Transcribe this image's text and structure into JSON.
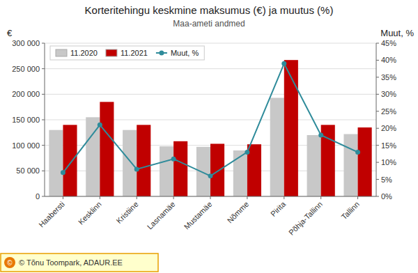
{
  "chart_data": {
    "type": "bar",
    "title": "Korteritehingu keskmine maksumus (€) ja muutus (%)",
    "subtitle": "Maa-ameti andmed",
    "ylabel": "€",
    "y2label": "Muut, %",
    "annotations": [
      "© Tõnu Toompark, ADAUR.EE",
      "©"
    ],
    "categories": [
      "Haabersti",
      "Kesklinn",
      "Kristiine",
      "Lasnamäe",
      "Mustamäe",
      "Nõmme",
      "Pirita",
      "Põhja-Tallinn",
      "Tallinn"
    ],
    "series": [
      {
        "name": "11.2020",
        "type": "bar",
        "color": "#c8c8c8",
        "values": [
          130000,
          155000,
          130000,
          98000,
          97000,
          90000,
          193000,
          120000,
          122000
        ]
      },
      {
        "name": "11.2021",
        "type": "bar",
        "color": "#c00000",
        "values": [
          140000,
          185000,
          140000,
          108000,
          103000,
          102000,
          267000,
          140000,
          135000
        ]
      },
      {
        "name": "Muut, %",
        "type": "line",
        "axis": "y2",
        "marker": "circle",
        "color": "#2e8b9a",
        "values": [
          7.0,
          21.0,
          8.0,
          11.0,
          6.0,
          13.0,
          39.0,
          18.0,
          13.0
        ]
      }
    ],
    "ylim": [
      0,
      300000
    ],
    "yticks": [
      0,
      {
        "value": 50000,
        "label": "50 000"
      },
      {
        "value": 100000,
        "label": "100 000"
      },
      {
        "value": 150000,
        "label": "150 000"
      },
      {
        "value": 200000,
        "label": "200 000"
      },
      {
        "value": 250000,
        "label": "250 000"
      },
      {
        "value": 300000,
        "label": "300 000"
      }
    ],
    "y2lim": [
      0,
      45
    ],
    "y2ticks": [
      {
        "value": 0,
        "label": "0%"
      },
      {
        "value": 5,
        "label": "5%"
      },
      {
        "value": 10,
        "label": "10%"
      },
      {
        "value": 15,
        "label": "15%"
      },
      {
        "value": 20,
        "label": "20%"
      },
      {
        "value": 25,
        "label": "25%"
      },
      {
        "value": 30,
        "label": "30%"
      },
      {
        "value": 35,
        "label": "35%"
      },
      {
        "value": 40,
        "label": "40%"
      },
      {
        "value": 45,
        "label": "45%"
      }
    ],
    "grid": true,
    "legend": "upper left"
  }
}
